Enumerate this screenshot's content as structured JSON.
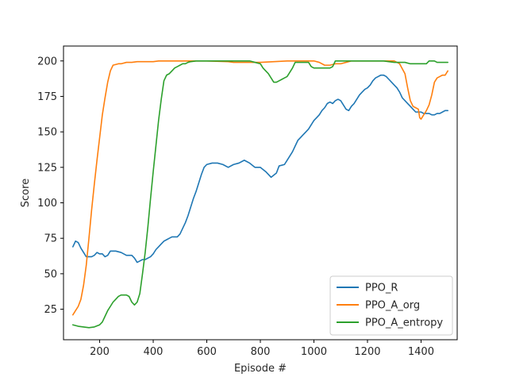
{
  "chart_data": {
    "type": "line",
    "title": "",
    "xlabel": "Episode #",
    "ylabel": "Score",
    "xlim": [
      65,
      1535
    ],
    "ylim": [
      3.5,
      210.5
    ],
    "xticks": [
      200,
      400,
      600,
      800,
      1000,
      1200,
      1400
    ],
    "yticks": [
      25,
      50,
      75,
      100,
      125,
      150,
      175,
      200
    ],
    "grid": false,
    "legend_position": "lower-right",
    "series": [
      {
        "name": "PPO_R",
        "color": "#1f77b4",
        "points": [
          [
            100,
            69
          ],
          [
            110,
            73
          ],
          [
            120,
            72
          ],
          [
            130,
            68
          ],
          [
            140,
            65
          ],
          [
            150,
            62
          ],
          [
            160,
            62
          ],
          [
            170,
            62
          ],
          [
            180,
            63
          ],
          [
            190,
            65
          ],
          [
            200,
            64
          ],
          [
            210,
            64
          ],
          [
            220,
            62
          ],
          [
            230,
            63
          ],
          [
            240,
            66
          ],
          [
            260,
            66
          ],
          [
            280,
            65
          ],
          [
            300,
            63
          ],
          [
            320,
            63
          ],
          [
            330,
            61
          ],
          [
            340,
            58
          ],
          [
            350,
            59
          ],
          [
            360,
            60
          ],
          [
            370,
            60
          ],
          [
            380,
            61
          ],
          [
            390,
            62
          ],
          [
            400,
            64
          ],
          [
            410,
            67
          ],
          [
            420,
            69
          ],
          [
            430,
            71
          ],
          [
            440,
            73
          ],
          [
            450,
            74
          ],
          [
            460,
            75
          ],
          [
            470,
            76
          ],
          [
            480,
            76
          ],
          [
            490,
            76
          ],
          [
            500,
            78
          ],
          [
            510,
            82
          ],
          [
            520,
            86
          ],
          [
            530,
            91
          ],
          [
            540,
            97
          ],
          [
            550,
            103
          ],
          [
            560,
            108
          ],
          [
            570,
            114
          ],
          [
            580,
            120
          ],
          [
            590,
            125
          ],
          [
            600,
            127
          ],
          [
            620,
            128
          ],
          [
            640,
            128
          ],
          [
            660,
            127
          ],
          [
            680,
            125
          ],
          [
            700,
            127
          ],
          [
            720,
            128
          ],
          [
            740,
            130
          ],
          [
            760,
            128
          ],
          [
            780,
            125
          ],
          [
            800,
            125
          ],
          [
            820,
            122
          ],
          [
            840,
            118
          ],
          [
            860,
            121
          ],
          [
            870,
            126
          ],
          [
            890,
            127
          ],
          [
            900,
            130
          ],
          [
            910,
            133
          ],
          [
            920,
            136
          ],
          [
            930,
            140
          ],
          [
            940,
            144
          ],
          [
            950,
            146
          ],
          [
            960,
            148
          ],
          [
            970,
            150
          ],
          [
            980,
            152
          ],
          [
            990,
            155
          ],
          [
            1000,
            158
          ],
          [
            1010,
            160
          ],
          [
            1020,
            162
          ],
          [
            1030,
            165
          ],
          [
            1040,
            167
          ],
          [
            1050,
            170
          ],
          [
            1060,
            171
          ],
          [
            1070,
            170
          ],
          [
            1080,
            172
          ],
          [
            1090,
            173
          ],
          [
            1100,
            172
          ],
          [
            1110,
            169
          ],
          [
            1120,
            166
          ],
          [
            1130,
            165
          ],
          [
            1140,
            168
          ],
          [
            1150,
            170
          ],
          [
            1160,
            173
          ],
          [
            1170,
            176
          ],
          [
            1180,
            178
          ],
          [
            1190,
            180
          ],
          [
            1200,
            181
          ],
          [
            1210,
            183
          ],
          [
            1220,
            186
          ],
          [
            1230,
            188
          ],
          [
            1240,
            189
          ],
          [
            1250,
            190
          ],
          [
            1260,
            190
          ],
          [
            1270,
            189
          ],
          [
            1280,
            187
          ],
          [
            1290,
            185
          ],
          [
            1300,
            183
          ],
          [
            1310,
            181
          ],
          [
            1320,
            178
          ],
          [
            1330,
            174
          ],
          [
            1340,
            172
          ],
          [
            1350,
            170
          ],
          [
            1360,
            168
          ],
          [
            1370,
            166
          ],
          [
            1380,
            164
          ],
          [
            1390,
            164
          ],
          [
            1400,
            164
          ],
          [
            1410,
            163
          ],
          [
            1420,
            163
          ],
          [
            1430,
            163
          ],
          [
            1440,
            162
          ],
          [
            1450,
            162
          ],
          [
            1460,
            163
          ],
          [
            1470,
            163
          ],
          [
            1480,
            164
          ],
          [
            1490,
            165
          ],
          [
            1500,
            165
          ]
        ]
      },
      {
        "name": "PPO_A_org",
        "color": "#ff7f0e",
        "points": [
          [
            100,
            21
          ],
          [
            110,
            24
          ],
          [
            120,
            27
          ],
          [
            130,
            32
          ],
          [
            140,
            42
          ],
          [
            150,
            56
          ],
          [
            160,
            75
          ],
          [
            170,
            95
          ],
          [
            180,
            113
          ],
          [
            190,
            130
          ],
          [
            200,
            146
          ],
          [
            210,
            162
          ],
          [
            220,
            174
          ],
          [
            230,
            185
          ],
          [
            240,
            193
          ],
          [
            250,
            197
          ],
          [
            260,
            197.5
          ],
          [
            270,
            198
          ],
          [
            280,
            198
          ],
          [
            300,
            199
          ],
          [
            320,
            199
          ],
          [
            340,
            199.5
          ],
          [
            360,
            199.5
          ],
          [
            380,
            199.5
          ],
          [
            400,
            199.5
          ],
          [
            420,
            200
          ],
          [
            600,
            200
          ],
          [
            680,
            199.5
          ],
          [
            700,
            199
          ],
          [
            760,
            199
          ],
          [
            800,
            199
          ],
          [
            900,
            200
          ],
          [
            960,
            200
          ],
          [
            1000,
            200
          ],
          [
            1020,
            199
          ],
          [
            1040,
            197
          ],
          [
            1060,
            197
          ],
          [
            1080,
            198
          ],
          [
            1100,
            198
          ],
          [
            1120,
            199
          ],
          [
            1140,
            200
          ],
          [
            1280,
            200
          ],
          [
            1300,
            200
          ],
          [
            1320,
            198
          ],
          [
            1340,
            191
          ],
          [
            1350,
            181
          ],
          [
            1360,
            172
          ],
          [
            1370,
            168
          ],
          [
            1380,
            167
          ],
          [
            1390,
            166
          ],
          [
            1395,
            160
          ],
          [
            1400,
            159
          ],
          [
            1410,
            162
          ],
          [
            1420,
            165
          ],
          [
            1430,
            169
          ],
          [
            1440,
            176
          ],
          [
            1450,
            185
          ],
          [
            1460,
            188
          ],
          [
            1470,
            189
          ],
          [
            1480,
            190
          ],
          [
            1490,
            190
          ],
          [
            1500,
            193
          ]
        ]
      },
      {
        "name": "PPO_A_entropy",
        "color": "#2ca02c",
        "points": [
          [
            100,
            14
          ],
          [
            120,
            13
          ],
          [
            140,
            12.5
          ],
          [
            160,
            12
          ],
          [
            180,
            12.5
          ],
          [
            200,
            14
          ],
          [
            210,
            16
          ],
          [
            220,
            20
          ],
          [
            230,
            24
          ],
          [
            240,
            27
          ],
          [
            250,
            30
          ],
          [
            260,
            32
          ],
          [
            270,
            34
          ],
          [
            280,
            35
          ],
          [
            290,
            35
          ],
          [
            300,
            35
          ],
          [
            310,
            34
          ],
          [
            320,
            30
          ],
          [
            330,
            28
          ],
          [
            340,
            30
          ],
          [
            350,
            36
          ],
          [
            360,
            50
          ],
          [
            370,
            65
          ],
          [
            380,
            83
          ],
          [
            390,
            103
          ],
          [
            400,
            122
          ],
          [
            410,
            140
          ],
          [
            420,
            158
          ],
          [
            430,
            173
          ],
          [
            440,
            186
          ],
          [
            450,
            190
          ],
          [
            460,
            191
          ],
          [
            470,
            193
          ],
          [
            480,
            195
          ],
          [
            490,
            196
          ],
          [
            500,
            197
          ],
          [
            510,
            198
          ],
          [
            520,
            198
          ],
          [
            530,
            199
          ],
          [
            540,
            199.5
          ],
          [
            560,
            200
          ],
          [
            760,
            200
          ],
          [
            780,
            199
          ],
          [
            800,
            198
          ],
          [
            810,
            195
          ],
          [
            820,
            193
          ],
          [
            830,
            191
          ],
          [
            840,
            188
          ],
          [
            850,
            185
          ],
          [
            860,
            185
          ],
          [
            870,
            186
          ],
          [
            880,
            187
          ],
          [
            890,
            188
          ],
          [
            900,
            189
          ],
          [
            910,
            192
          ],
          [
            920,
            195
          ],
          [
            930,
            199
          ],
          [
            940,
            199
          ],
          [
            960,
            199
          ],
          [
            980,
            199
          ],
          [
            990,
            196
          ],
          [
            1000,
            195
          ],
          [
            1020,
            195
          ],
          [
            1040,
            195
          ],
          [
            1060,
            195
          ],
          [
            1070,
            196
          ],
          [
            1080,
            200
          ],
          [
            1140,
            200
          ],
          [
            1260,
            200
          ],
          [
            1300,
            199
          ],
          [
            1320,
            199
          ],
          [
            1340,
            199
          ],
          [
            1360,
            198
          ],
          [
            1380,
            198
          ],
          [
            1400,
            198
          ],
          [
            1420,
            198
          ],
          [
            1430,
            200
          ],
          [
            1450,
            200
          ],
          [
            1460,
            199
          ],
          [
            1470,
            199
          ],
          [
            1500,
            199
          ]
        ]
      }
    ]
  }
}
